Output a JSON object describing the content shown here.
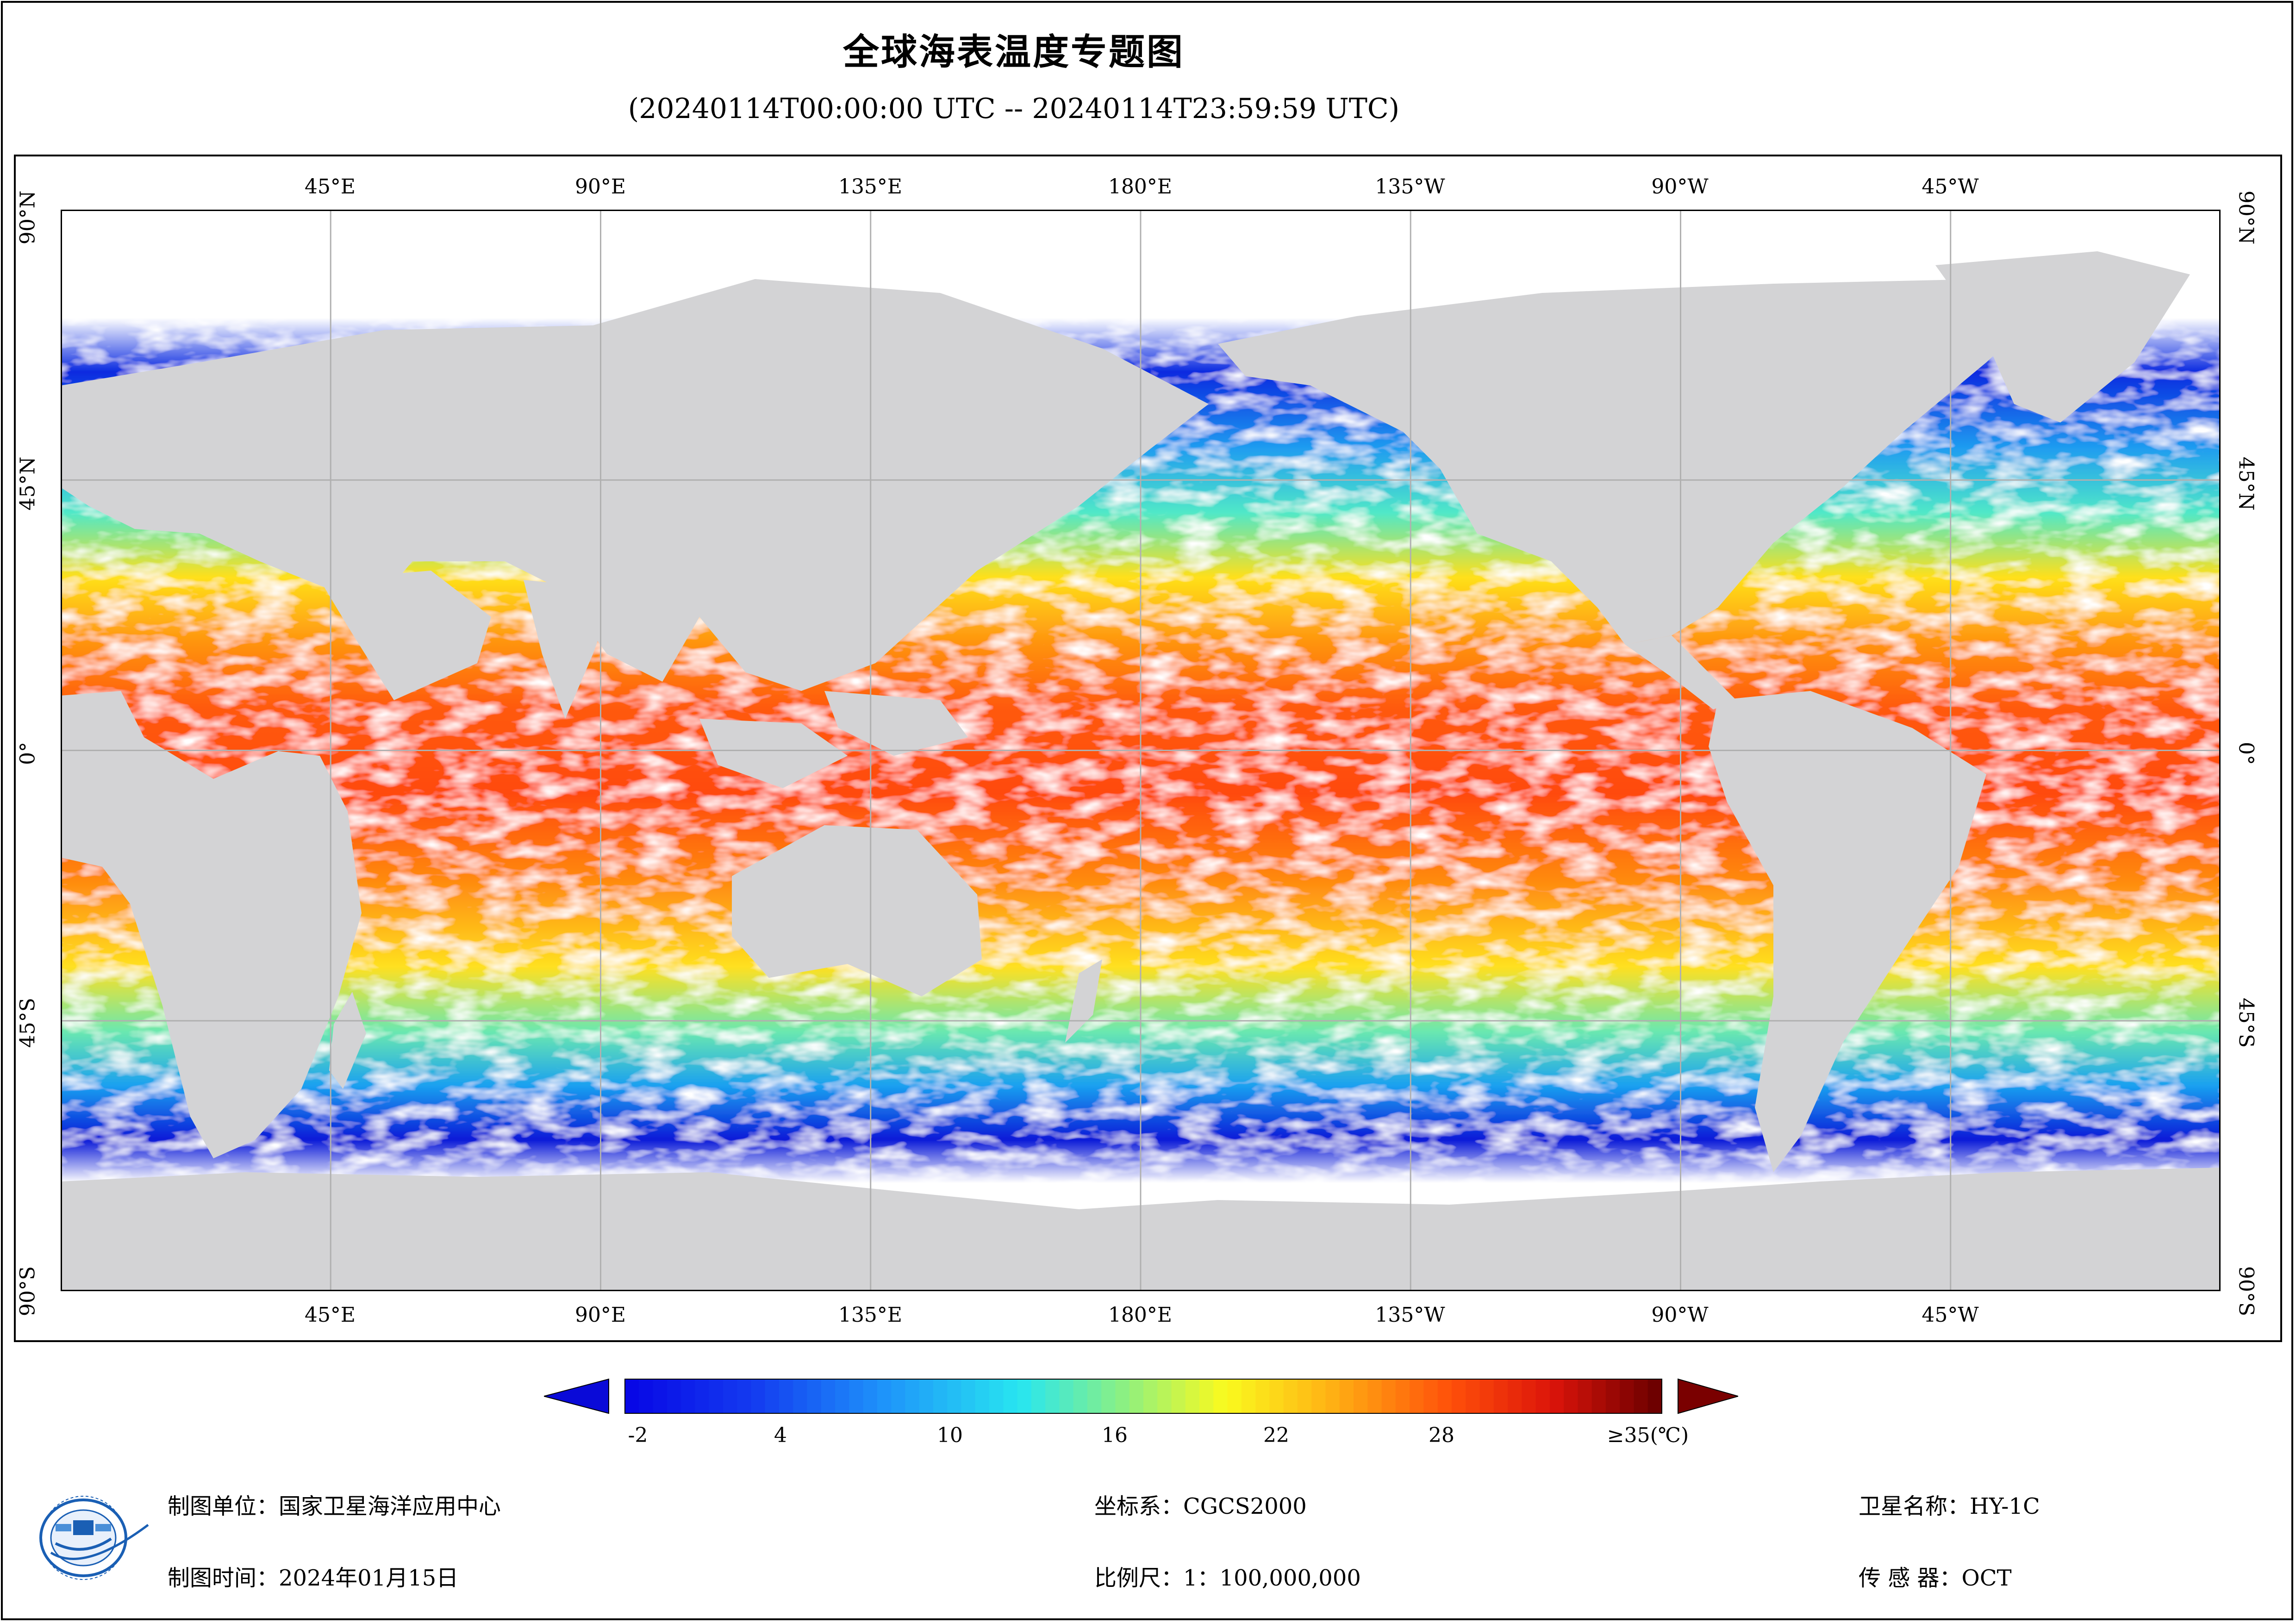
{
  "title": "全球海表温度专题图",
  "subtitle": "(20240114T00:00:00 UTC -- 20240114T23:59:59 UTC)",
  "map": {
    "lon_labels": [
      "45°E",
      "90°E",
      "135°E",
      "180°E",
      "135°W",
      "90°W",
      "45°W"
    ],
    "lat_labels": [
      "90°N",
      "45°N",
      "0°",
      "45°S",
      "90°S"
    ],
    "land_color": "#d3d3d5",
    "cloud_color": "#ffffff",
    "grid_color": "#b0b0b0"
  },
  "colorbar": {
    "ticks": [
      "-2",
      "4",
      "10",
      "16",
      "22",
      "28",
      "≥35(℃)"
    ],
    "min": -2,
    "max": 35,
    "unit": "℃",
    "low_color": "#0a0ad8",
    "high_color": "#7a0000"
  },
  "footer": {
    "unit": "制图单位：国家卫星海洋应用中心",
    "time": "制图时间：2024年01月15日",
    "coord": "坐标系：CGCS2000",
    "scale": "比例尺：1：100,000,000",
    "satellite": "卫星名称：HY-1C",
    "sensor": "传 感 器：OCT"
  }
}
